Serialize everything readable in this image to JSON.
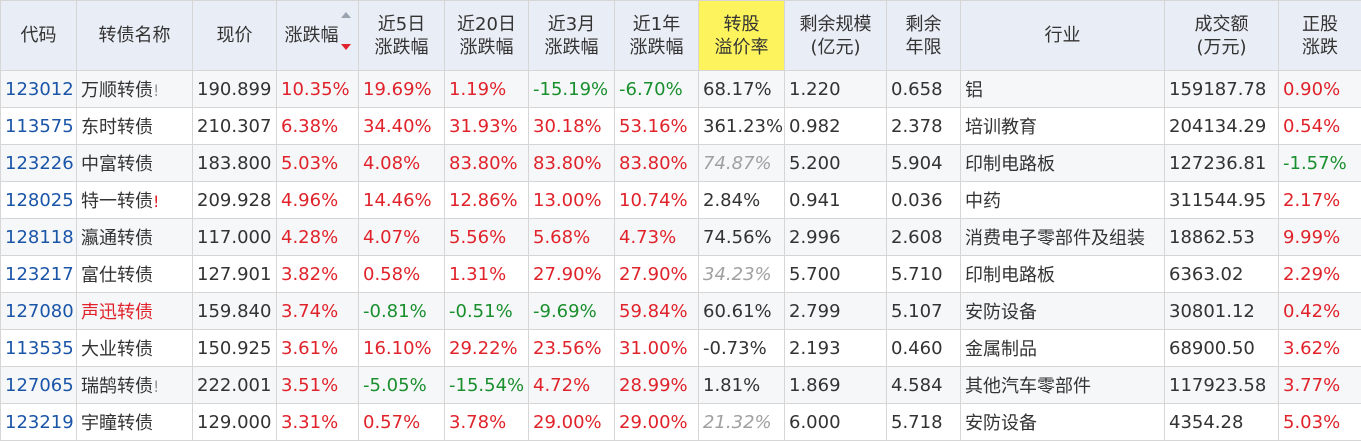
{
  "headers": [
    {
      "label": "代码"
    },
    {
      "label": "转债名称"
    },
    {
      "label": "现价"
    },
    {
      "label": "涨跌幅"
    },
    {
      "label": "近5日 涨跌幅"
    },
    {
      "label": "近20日 涨跌幅"
    },
    {
      "label": "近3月 涨跌幅"
    },
    {
      "label": "近1年 涨跌幅"
    },
    {
      "label": "转股 溢价率"
    },
    {
      "label": "剩余规模 (亿元)"
    },
    {
      "label": "剩余 年限"
    },
    {
      "label": "行业"
    },
    {
      "label": "成交额 (万元)"
    },
    {
      "label": "正股 涨跌"
    }
  ],
  "rows": [
    {
      "code": "123012",
      "name": "万顺转债",
      "mark": "!",
      "price": "190.899",
      "chg": "10.35%",
      "c5": "19.69%",
      "c20": "1.19%",
      "c3m": "-15.19%",
      "c1y": "-6.70%",
      "prem": "68.17%",
      "scale": "1.220",
      "years": "0.658",
      "industry": "铝",
      "amount": "159187.78",
      "stock": "0.90%"
    },
    {
      "code": "113575",
      "name": "东时转债",
      "mark": "",
      "price": "210.307",
      "chg": "6.38%",
      "c5": "34.40%",
      "c20": "31.93%",
      "c3m": "30.18%",
      "c1y": "53.16%",
      "prem": "361.23%",
      "scale": "0.982",
      "years": "2.378",
      "industry": "培训教育",
      "amount": "204134.29",
      "stock": "0.54%"
    },
    {
      "code": "123226",
      "name": "中富转债",
      "mark": "",
      "price": "183.800",
      "chg": "5.03%",
      "c5": "4.08%",
      "c20": "83.80%",
      "c3m": "83.80%",
      "c1y": "83.80%",
      "prem": "74.87%",
      "scale": "5.200",
      "years": "5.904",
      "industry": "印制电路板",
      "amount": "127236.81",
      "stock": "-1.57%"
    },
    {
      "code": "128025",
      "name": "特一转债",
      "mark": "!",
      "price": "209.928",
      "chg": "4.96%",
      "c5": "14.46%",
      "c20": "12.86%",
      "c3m": "13.00%",
      "c1y": "10.74%",
      "prem": "2.84%",
      "scale": "0.941",
      "years": "0.036",
      "industry": "中药",
      "amount": "311544.95",
      "stock": "2.17%"
    },
    {
      "code": "128118",
      "name": "瀛通转债",
      "mark": "",
      "price": "117.000",
      "chg": "4.28%",
      "c5": "4.07%",
      "c20": "5.56%",
      "c3m": "5.68%",
      "c1y": "4.73%",
      "prem": "74.56%",
      "scale": "2.996",
      "years": "2.608",
      "industry": "消费电子零部件及组装",
      "amount": "18862.53",
      "stock": "9.99%"
    },
    {
      "code": "123217",
      "name": "富仕转债",
      "mark": "",
      "price": "127.901",
      "chg": "3.82%",
      "c5": "0.58%",
      "c20": "1.31%",
      "c3m": "27.90%",
      "c1y": "27.90%",
      "prem": "34.23%",
      "scale": "5.700",
      "years": "5.710",
      "industry": "印制电路板",
      "amount": "6363.02",
      "stock": "2.29%"
    },
    {
      "code": "127080",
      "name": "声迅转债",
      "mark": "",
      "price": "159.840",
      "chg": "3.74%",
      "c5": "-0.81%",
      "c20": "-0.51%",
      "c3m": "-9.69%",
      "c1y": "59.84%",
      "prem": "60.61%",
      "scale": "2.799",
      "years": "5.107",
      "industry": "安防设备",
      "amount": "30801.12",
      "stock": "0.42%"
    },
    {
      "code": "113535",
      "name": "大业转债",
      "mark": "",
      "price": "150.925",
      "chg": "3.61%",
      "c5": "16.10%",
      "c20": "29.22%",
      "c3m": "23.56%",
      "c1y": "31.00%",
      "prem": "-0.73%",
      "scale": "2.193",
      "years": "0.460",
      "industry": "金属制品",
      "amount": "68900.50",
      "stock": "3.62%"
    },
    {
      "code": "127065",
      "name": "瑞鹄转债",
      "mark": "!",
      "price": "222.001",
      "chg": "3.51%",
      "c5": "-5.05%",
      "c20": "-15.54%",
      "c3m": "4.72%",
      "c1y": "28.99%",
      "prem": "1.81%",
      "scale": "1.869",
      "years": "4.584",
      "industry": "其他汽车零部件",
      "amount": "117923.58",
      "stock": "3.77%"
    },
    {
      "code": "123219",
      "name": "宇瞳转债",
      "mark": "",
      "price": "129.000",
      "chg": "3.31%",
      "c5": "0.57%",
      "c20": "3.78%",
      "c3m": "29.00%",
      "c1y": "29.00%",
      "prem": "21.32%",
      "scale": "6.000",
      "years": "5.718",
      "industry": "安防设备",
      "amount": "4354.28",
      "stock": "5.03%"
    }
  ],
  "styles": {
    "red": "#e0232b",
    "green": "#1a8f2e",
    "link_blue": "#1a55a8",
    "header_bg": "#e9edf5",
    "highlight": "#fdf45d"
  }
}
